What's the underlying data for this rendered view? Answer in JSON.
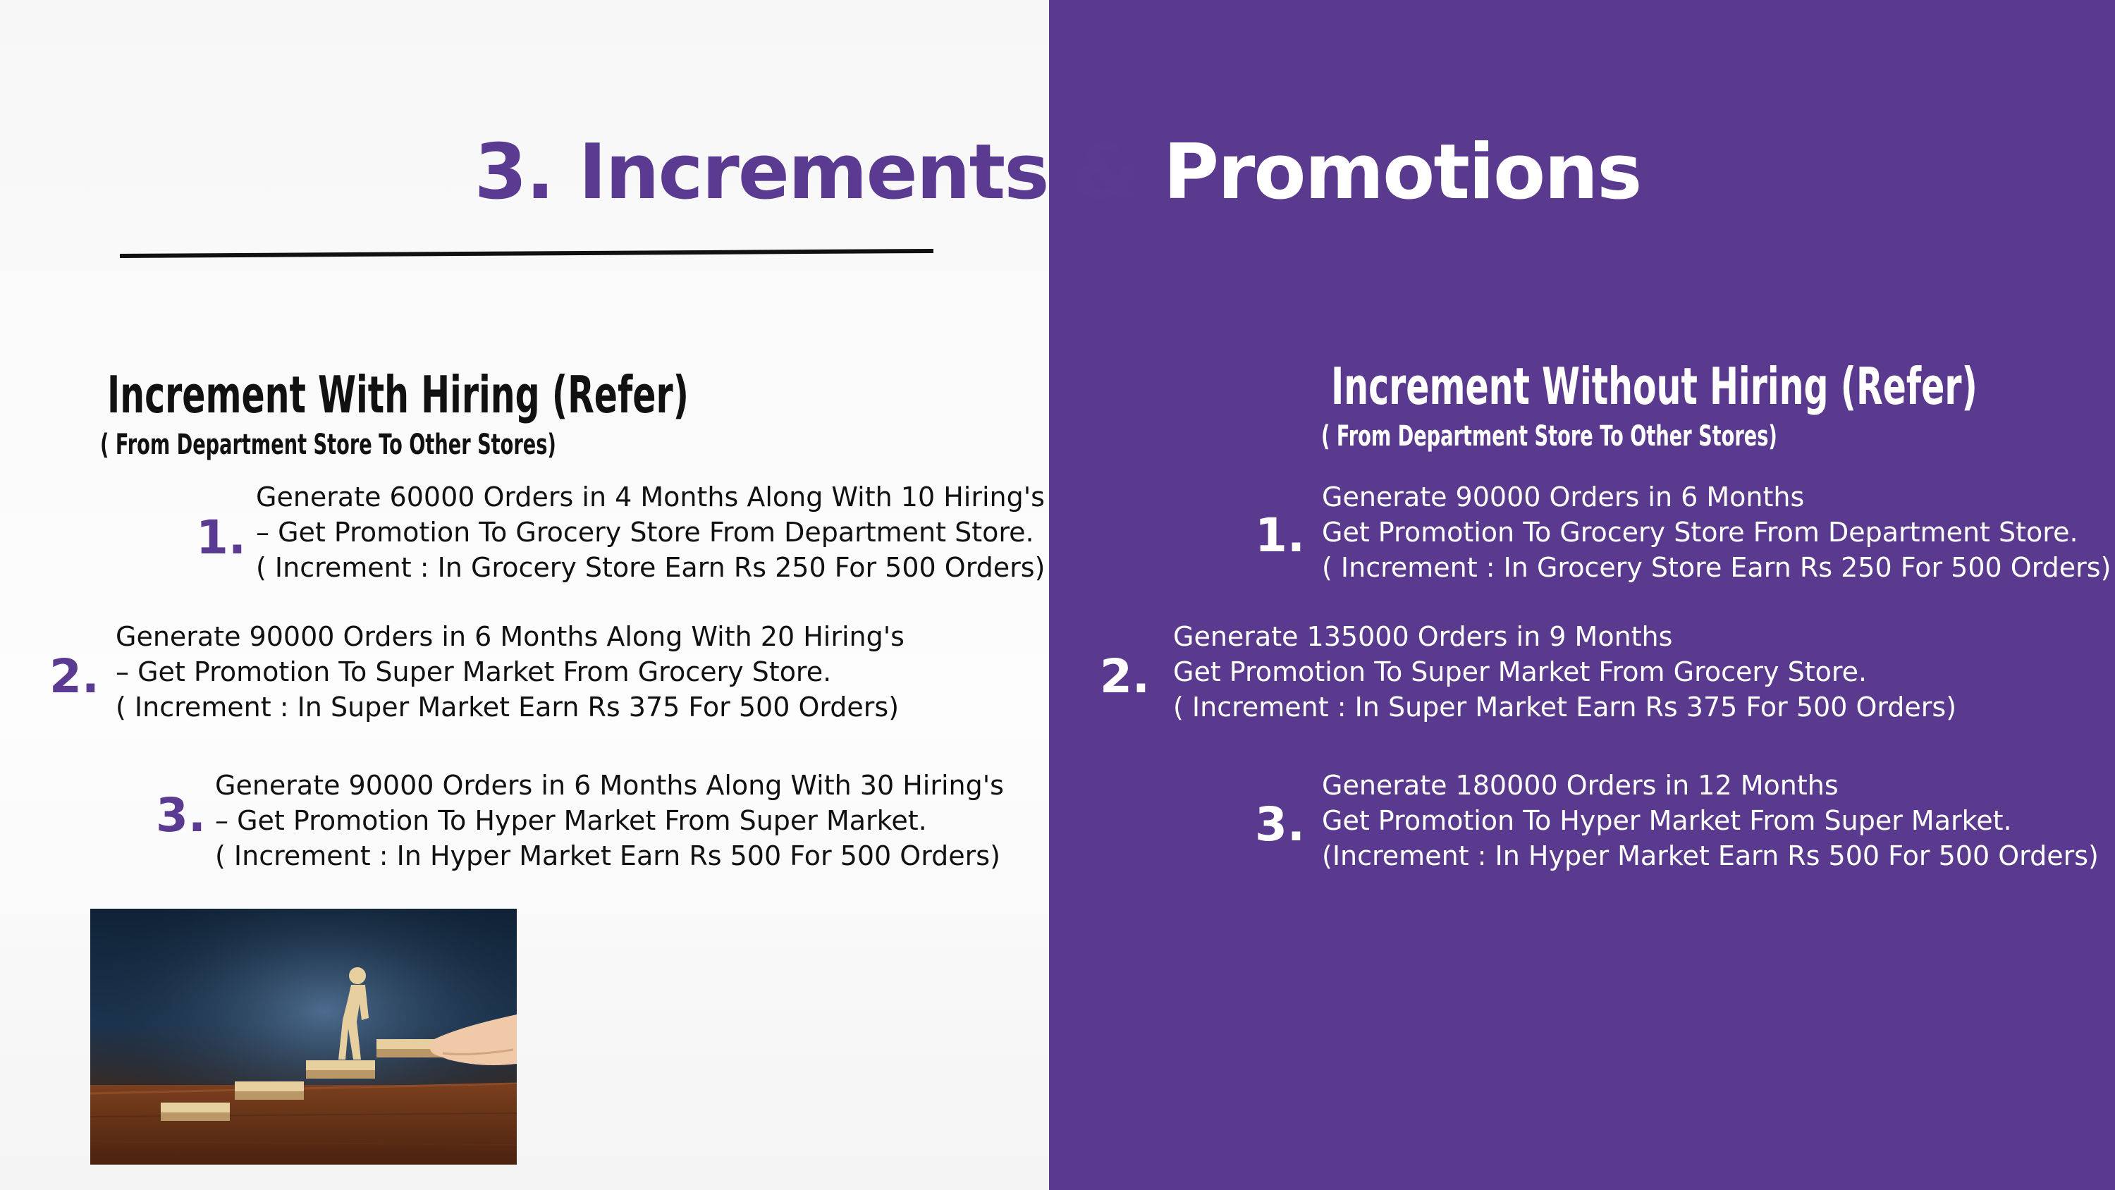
{
  "slide": {
    "title_part1": "3. Increments &",
    "title_part2": "Promotions"
  },
  "left_section": {
    "heading": "Increment With Hiring (Refer)",
    "subheading": "( From Department Store To Other Stores)",
    "items": [
      {
        "number": "1.",
        "lines": [
          "Generate 60000 Orders in 4 Months Along With 10 Hiring's",
          "– Get Promotion To Grocery Store From Department Store.",
          "( Increment : In Grocery Store Earn Rs 250 For 500 Orders)"
        ]
      },
      {
        "number": "2.",
        "lines": [
          "Generate 90000 Orders in 6 Months Along With 20 Hiring's",
          "– Get Promotion To Super Market From Grocery Store.",
          "( Increment : In Super Market Earn Rs 375 For 500 Orders)"
        ]
      },
      {
        "number": "3.",
        "lines": [
          "Generate 90000 Orders in 6 Months Along With 30 Hiring's",
          "– Get Promotion To Hyper Market From Super Market.",
          "( Increment : In Hyper Market Earn Rs 500 For 500 Orders)"
        ]
      }
    ]
  },
  "right_section": {
    "heading": "Increment Without Hiring (Refer)",
    "subheading": "( From Department Store To Other Stores)",
    "items": [
      {
        "number": "1.",
        "lines": [
          "Generate 90000 Orders in 6 Months",
          "Get Promotion To Grocery Store From Department Store.",
          "( Increment : In Grocery Store Earn Rs 250 For 500 Orders)"
        ]
      },
      {
        "number": "2.",
        "lines": [
          "Generate 135000 Orders in 9 Months",
          "Get Promotion To Super Market From Grocery Store.",
          "( Increment : In Super Market Earn Rs 375 For 500 Orders)"
        ]
      },
      {
        "number": "3.",
        "lines": [
          "Generate 180000 Orders in 12 Months",
          "Get Promotion To Hyper Market From Super Market.",
          "(Increment : In Hyper Market Earn Rs 500 For 500 Orders)"
        ]
      }
    ]
  },
  "image": {
    "icon": "career-steps-photo"
  },
  "colors": {
    "accent_purple": "#5b3a92",
    "panel_purple": "#5a3a8e",
    "text_dark": "#111111",
    "text_light": "#ffffff"
  }
}
